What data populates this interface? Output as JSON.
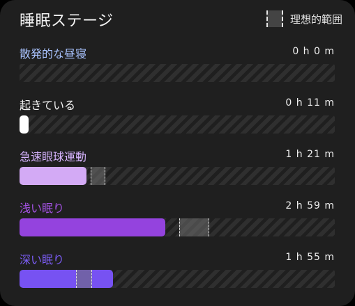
{
  "title": "睡眠ステージ",
  "legend": {
    "label": "理想的範囲"
  },
  "stages": [
    {
      "label": "散発的な昼寝",
      "time": "0 h 0 m",
      "label_color": "#a9c3ff",
      "fill_color": "#a9c3ff",
      "fill_fraction": 0.0,
      "ideal": null
    },
    {
      "label": "起きている",
      "time": "0 h 11 m",
      "label_color": "#f2f2f2",
      "fill_color": "#ffffff",
      "fill_fraction": 0.026,
      "ideal": null
    },
    {
      "label": "急速眼球運動",
      "time": "1 h 21 m",
      "label_color": "#d7b4ff",
      "fill_color": "#d3aaf5",
      "fill_fraction": 0.212,
      "ideal": [
        0.226,
        0.272
      ]
    },
    {
      "label": "浅い眠り",
      "time": "2 h 59 m",
      "label_color": "#a653e6",
      "fill_color": "#9443de",
      "fill_fraction": 0.462,
      "ideal": [
        0.506,
        0.602
      ]
    },
    {
      "label": "深い眠り",
      "time": "1 h 55 m",
      "label_color": "#7b5cf5",
      "fill_color": "#7752f2",
      "fill_fraction": 0.297,
      "ideal": [
        0.18,
        0.23
      ]
    }
  ]
}
